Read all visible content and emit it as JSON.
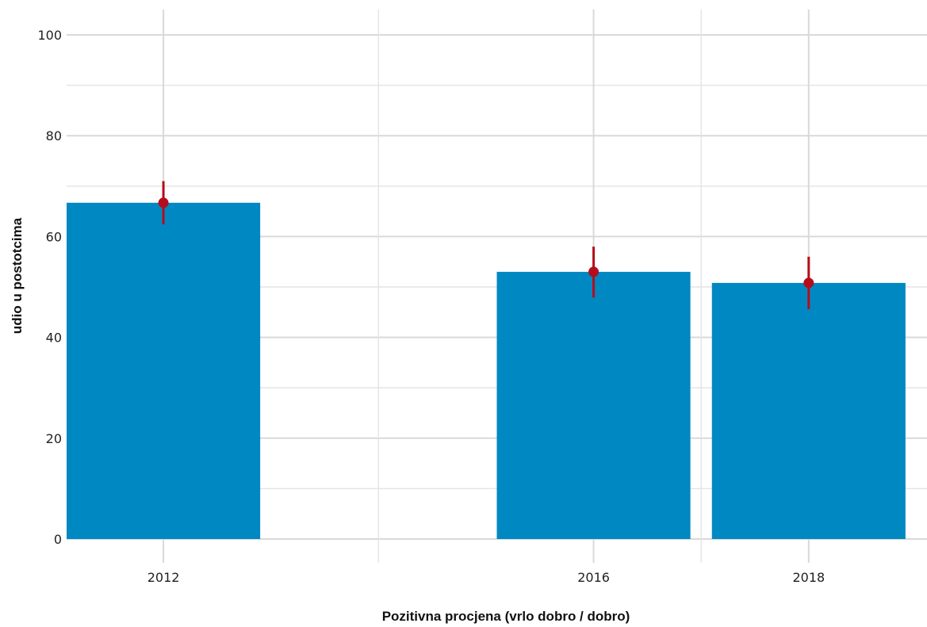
{
  "chart_data": {
    "type": "bar",
    "xlabel": "Pozitivna procjena (vrlo dobro / dobro)",
    "ylabel": "udio u postotcima",
    "x_axis": {
      "type": "numeric-year",
      "range": [
        2011.1,
        2019.1
      ],
      "major_ticks": [
        2012,
        2016,
        2018
      ],
      "major_tick_labels": [
        "2012",
        "2016",
        "2018"
      ],
      "minor_gridlines": [
        2014,
        2017
      ]
    },
    "y_axis": {
      "range": [
        0,
        100
      ],
      "major_ticks": [
        0,
        20,
        40,
        60,
        80,
        100
      ],
      "major_tick_labels": [
        "0",
        "20",
        "40",
        "60",
        "80",
        "100"
      ],
      "minor_gridlines": [
        10,
        30,
        50,
        70,
        90
      ]
    },
    "grid": true,
    "legend": "none",
    "series": [
      {
        "categories": [
          "2012",
          "2016",
          "2018"
        ],
        "x": [
          2012,
          2016,
          2018
        ],
        "values": [
          66.7,
          53.0,
          50.8
        ],
        "error_low": [
          62.4,
          47.9,
          45.6
        ],
        "error_high": [
          71.0,
          58.0,
          56.0
        ]
      }
    ],
    "colors": {
      "bar": "#0088c2",
      "point": "#b50d1b",
      "error_bar": "#b50d1b",
      "major_grid": "#d9d9d9",
      "minor_grid": "#e3e3e3"
    }
  }
}
